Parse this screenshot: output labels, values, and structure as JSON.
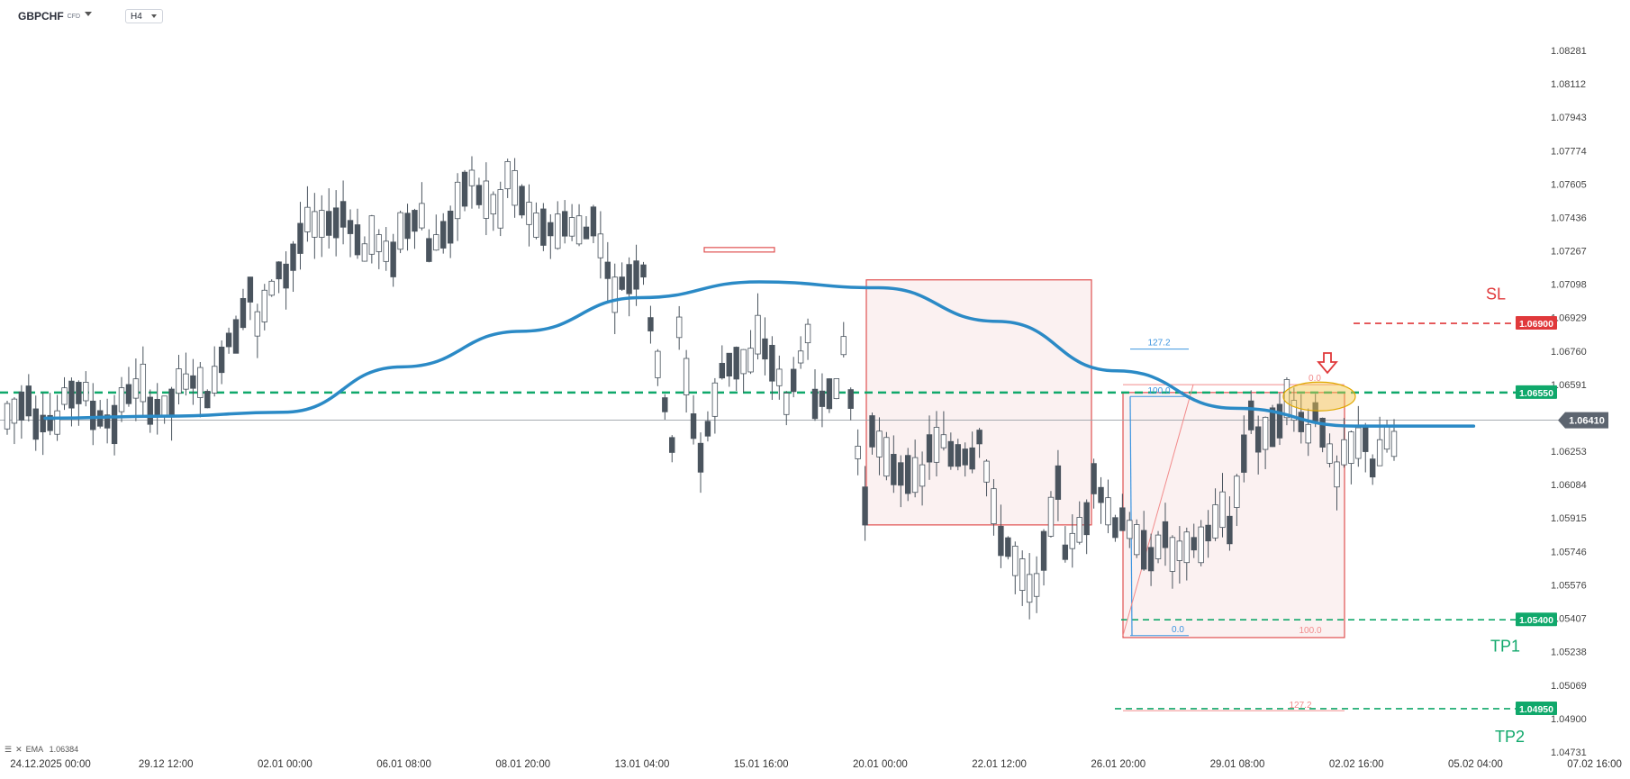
{
  "header": {
    "symbol": "GBPCHF",
    "instrument_type": "CFD",
    "timeframe": "H4"
  },
  "indicator": {
    "name": "EMA",
    "value": "1.06384"
  },
  "colors": {
    "ema": "#2b8ac6",
    "bull_body": "#ffffff",
    "bear_body": "#4a545e",
    "candle_stroke": "#4a545e",
    "green": "#10a86b",
    "red": "#e0393b",
    "box_fill": "#fbf1f1",
    "box_stroke": "#e05050",
    "fib_blue": "#3b94e0",
    "fib_red": "#f28b8b",
    "highlight": "#f5c54a",
    "price_tag": "#5d6570"
  },
  "chart_data": {
    "type": "candlestick",
    "title": "",
    "xlabel": "",
    "ylabel": "",
    "ylim": [
      1.0473,
      1.0835
    ],
    "y_ticks": [
      "1.08281",
      "1.08112",
      "1.07943",
      "1.07774",
      "1.07605",
      "1.07436",
      "1.07267",
      "1.07098",
      "1.06929",
      "1.06760",
      "1.06591",
      "1.06253",
      "1.06084",
      "1.05915",
      "1.05746",
      "1.05576",
      "1.05407",
      "1.05238",
      "1.05069",
      "1.04900",
      "1.04731"
    ],
    "x_ticks": [
      "24.12.2025 00:00",
      "29.12 12:00",
      "02.01 00:00",
      "06.01 08:00",
      "08.01 20:00",
      "13.01 04:00",
      "15.01 16:00",
      "20.01 00:00",
      "22.01 12:00",
      "26.01 20:00",
      "29.01 08:00",
      "02.02 16:00",
      "05.02 04:00",
      "07.02 16:00"
    ],
    "ohlc_anchors": [
      [
        1.0643,
        1.0633
      ],
      [
        1.0639,
        1.0653
      ],
      [
        1.0653,
        1.064
      ],
      [
        1.0644,
        1.0656
      ],
      [
        1.065,
        1.0638
      ],
      [
        1.0645,
        1.0661
      ],
      [
        1.0661,
        1.065
      ],
      [
        1.0643,
        1.066
      ],
      [
        1.0672,
        1.0682
      ],
      [
        1.0689,
        1.0718
      ],
      [
        1.0712,
        1.0724
      ],
      [
        1.074,
        1.0749
      ],
      [
        1.0748,
        1.0741
      ],
      [
        1.0737,
        1.0723
      ],
      [
        1.0735,
        1.0721
      ],
      [
        1.0724,
        1.0745
      ],
      [
        1.0747,
        1.0739
      ],
      [
        1.0755,
        1.0769
      ],
      [
        1.0766,
        1.0746
      ],
      [
        1.074,
        1.0741
      ],
      [
        1.0741,
        1.0736
      ],
      [
        1.0748,
        1.0735
      ],
      [
        1.0709,
        1.07
      ],
      [
        1.0705,
        1.0717
      ],
      [
        1.071,
        1.0626
      ],
      [
        1.0622,
        1.0613
      ],
      [
        1.0669,
        1.0679
      ],
      [
        1.0686,
        1.0672
      ],
      [
        1.0645,
        1.0658
      ],
      [
        1.0648,
        1.0691
      ],
      [
        1.0695,
        1.0658
      ],
      [
        1.064,
        1.059
      ],
      [
        1.0614,
        1.0615
      ],
      [
        1.0625,
        1.0613
      ],
      [
        1.0624,
        1.0632
      ],
      [
        1.0636,
        1.0621
      ],
      [
        1.0579,
        1.0568
      ],
      [
        1.055,
        1.0552
      ],
      [
        1.0571,
        1.0617
      ],
      [
        1.0617,
        1.0593
      ],
      [
        1.0595,
        1.0585
      ],
      [
        1.0565,
        1.0575
      ],
      [
        1.0573,
        1.0589
      ],
      [
        1.0577,
        1.058
      ],
      [
        1.058,
        1.06
      ],
      [
        1.063,
        1.0655
      ],
      [
        1.0655,
        1.0642
      ],
      [
        1.0652,
        1.0632
      ],
      [
        1.0623,
        1.0611
      ],
      [
        1.061,
        1.0632
      ],
      [
        1.0629,
        1.064
      ]
    ],
    "ema": {
      "name": "EMA",
      "points": [
        [
          "24.12.2025 00:00",
          1.0642
        ],
        [
          "29.12 12:00",
          1.0643
        ],
        [
          "02.01 00:00",
          1.0645
        ],
        [
          "06.01 08:00",
          1.0668
        ],
        [
          "08.01 20:00",
          1.0686
        ],
        [
          "13.01 04:00",
          1.0703
        ],
        [
          "15.01 16:00",
          1.0711
        ],
        [
          "20.01 00:00",
          1.0708
        ],
        [
          "22.01 12:00",
          1.0691
        ],
        [
          "26.01 20:00",
          1.0666
        ],
        [
          "29.01 08:00",
          1.0647
        ],
        [
          "02.02 16:00",
          1.0638
        ],
        [
          "05.02 04:00",
          1.0638
        ]
      ]
    },
    "current_price": "1.06410",
    "levels": [
      {
        "label": "SL",
        "price": "1.06900",
        "style": "dashed",
        "color": "red"
      },
      {
        "label": "",
        "price": "1.06550",
        "style": "dashed",
        "color": "green"
      },
      {
        "label": "TP1",
        "price": "1.05400",
        "style": "dashed",
        "color": "green"
      },
      {
        "label": "TP2",
        "price": "1.04950",
        "style": "dashed",
        "color": "green"
      }
    ],
    "fib_left": {
      "labels": [
        "127.2",
        "100.0",
        "0.0"
      ]
    },
    "fib_right": {
      "labels": [
        "0.0",
        "100.0",
        "127.2"
      ]
    },
    "annotations": {
      "sell_arrow": "down",
      "highlight_zone": "ellipse"
    }
  }
}
